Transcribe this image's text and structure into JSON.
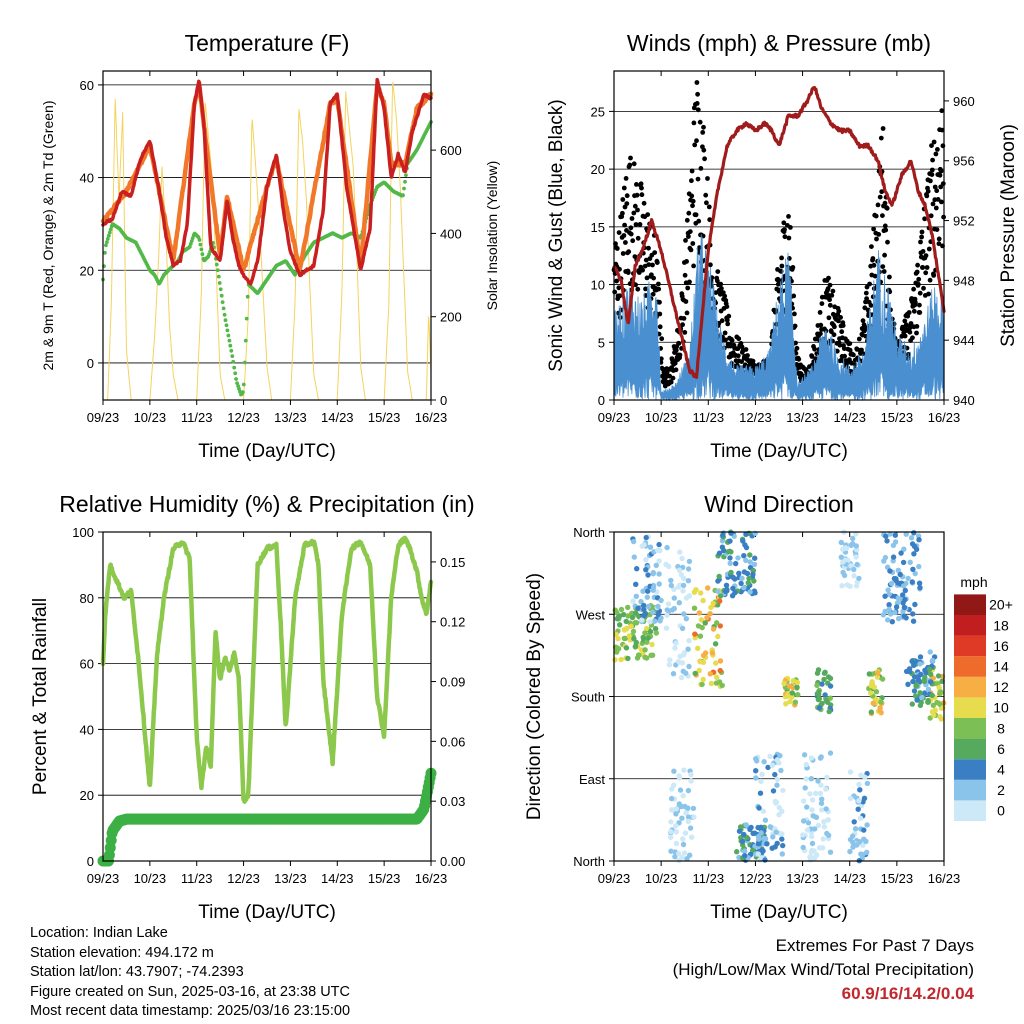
{
  "footer": {
    "location": "Location: Indian Lake",
    "elevation": "Station elevation: 494.172 m",
    "latlon": "Station lat/lon: 43.7907; -74.2393",
    "created": "Figure created on Sun, 2025-03-16, at 23:38 UTC",
    "latest": "Most recent data timestamp: 2025/03/16 23:15:00"
  },
  "extremes": {
    "title": "Extremes For Past 7 Days",
    "subtitle": "(High/Low/Max Wind/Total Precipitation)",
    "values": "60.9/16/14.2/0.04",
    "value_color": "#c1272d"
  },
  "chart_data": [
    {
      "type": "line",
      "title": "Temperature (F)",
      "xlabel": "Time (Day/UTC)",
      "ylabel": "2m & 9m T (Red, Orange) & 2m Td (Green)",
      "ylabel_right": "Solar Insolation (Yellow)",
      "xticks": [
        "09/23",
        "10/23",
        "11/23",
        "12/23",
        "13/23",
        "14/23",
        "15/23",
        "16/23"
      ],
      "x_unit": "days since 09/23",
      "xlim": [
        0,
        7
      ],
      "ylim": [
        -8,
        63
      ],
      "yticks": [
        0,
        20,
        40,
        60
      ],
      "ylim_right": [
        0,
        790
      ],
      "yticks_right": [
        0,
        200,
        400,
        600
      ],
      "grid": "horizontal",
      "series": [
        {
          "name": "2m T",
          "color": "#c91f1f",
          "style": "line",
          "x": [
            0,
            0.2,
            0.4,
            0.6,
            0.8,
            1.0,
            1.2,
            1.35,
            1.5,
            1.65,
            1.8,
            1.95,
            2.05,
            2.15,
            2.3,
            2.5,
            2.65,
            2.75,
            2.9,
            3.0,
            3.15,
            3.3,
            3.5,
            3.7,
            3.85,
            4.0,
            4.2,
            4.5,
            4.7,
            4.85,
            5.0,
            5.2,
            5.5,
            5.7,
            5.85,
            6.0,
            6.15,
            6.3,
            6.45,
            6.6,
            6.7,
            6.85,
            7.0
          ],
          "y": [
            30,
            31,
            37,
            36,
            44,
            48,
            37,
            27,
            21,
            22,
            30,
            56,
            61,
            52,
            25,
            22,
            35,
            28,
            21,
            19,
            17,
            22,
            38,
            45,
            33,
            24,
            19,
            21,
            33,
            56,
            58,
            38,
            20,
            29,
            61,
            55,
            40,
            45,
            41,
            50,
            53,
            58,
            57
          ]
        },
        {
          "name": "9m T",
          "color": "#f07828",
          "style": "line",
          "x": [
            0,
            0.5,
            1.0,
            1.5,
            1.95,
            2.05,
            2.5,
            2.65,
            3.0,
            3.5,
            3.7,
            4.2,
            4.85,
            5.0,
            5.5,
            5.85,
            6.0,
            6.15,
            6.45,
            6.7,
            7.0
          ],
          "y": [
            30.5,
            37,
            47,
            22,
            56,
            60,
            23,
            36,
            20,
            38,
            44,
            20,
            56,
            57,
            21,
            60,
            56,
            43,
            43,
            55,
            58
          ]
        },
        {
          "name": "2m Td",
          "color": "#52b848",
          "style": "dotted",
          "x": [
            0,
            0.05,
            0.2,
            0.35,
            0.5,
            0.7,
            0.9,
            1.0,
            1.1,
            1.2,
            1.3,
            1.5,
            1.6,
            1.7,
            1.85,
            1.95,
            2.05,
            2.15,
            2.25,
            2.35,
            2.45,
            2.6,
            2.75,
            2.85,
            2.95,
            3.0,
            3.1,
            3.3,
            3.5,
            3.7,
            3.9,
            4.1,
            4.3,
            4.5,
            4.7,
            4.9,
            5.1,
            5.3,
            5.5,
            5.7,
            5.85,
            6.0,
            6.2,
            6.4,
            6.5,
            6.7,
            6.85,
            7.0
          ],
          "y": [
            18,
            25,
            30,
            29,
            27,
            26,
            22,
            20,
            19,
            17,
            19,
            21,
            22,
            24,
            25,
            28,
            27,
            22,
            23,
            26,
            20,
            10,
            2,
            -4,
            -7,
            -6,
            17,
            15,
            18,
            21,
            22,
            19,
            23,
            26,
            27,
            28,
            27,
            28,
            27,
            34,
            38,
            39,
            37,
            36,
            43,
            46,
            49,
            52
          ]
        },
        {
          "name": "Solar Insolation",
          "color": "#f4d35e",
          "style": "thin",
          "axis": "right",
          "x": [
            0,
            0.1,
            0.18,
            0.26,
            0.34,
            0.42,
            0.5,
            0.6,
            0.9,
            1.0,
            1.1,
            1.18,
            1.26,
            1.34,
            1.42,
            1.5,
            1.6,
            1.9,
            2.0,
            2.1,
            2.18,
            2.26,
            2.34,
            2.42,
            2.5,
            2.6,
            2.9,
            3.0,
            3.1,
            3.18,
            3.26,
            3.34,
            3.42,
            3.5,
            3.6,
            3.9,
            4.0,
            4.1,
            4.18,
            4.26,
            4.34,
            4.42,
            4.5,
            4.6,
            4.9,
            5.0,
            5.1,
            5.18,
            5.26,
            5.34,
            5.42,
            5.5,
            5.6,
            5.9,
            6.0,
            6.1,
            6.18,
            6.26,
            6.34,
            6.42,
            6.5,
            6.6,
            6.9,
            6.95,
            7.0
          ],
          "y": [
            0,
            0,
            240,
            730,
            480,
            690,
            120,
            0,
            0,
            0,
            150,
            320,
            560,
            400,
            180,
            60,
            0,
            0,
            0,
            260,
            720,
            620,
            520,
            300,
            60,
            0,
            0,
            0,
            200,
            680,
            560,
            420,
            250,
            80,
            0,
            0,
            0,
            240,
            700,
            620,
            480,
            260,
            60,
            0,
            0,
            0,
            260,
            740,
            650,
            560,
            340,
            80,
            0,
            0,
            0,
            230,
            770,
            680,
            520,
            300,
            70,
            0,
            0,
            210,
            60
          ]
        }
      ]
    },
    {
      "type": "line",
      "title": "Winds (mph) & Pressure (mb)",
      "xlabel": "Time (Day/UTC)",
      "ylabel": "Sonic Wind & Gust (Blue, Black)",
      "ylabel_right": "Station Pressure (Maroon)",
      "xticks": [
        "09/23",
        "10/23",
        "11/23",
        "12/23",
        "13/23",
        "14/23",
        "15/23",
        "16/23"
      ],
      "x_unit": "days since 09/23",
      "xlim": [
        0,
        7
      ],
      "ylim": [
        0,
        28.5
      ],
      "yticks": [
        0,
        5,
        10,
        15,
        20,
        25
      ],
      "ylim_right": [
        940,
        962
      ],
      "yticks_right": [
        940,
        944,
        948,
        952,
        956,
        960
      ],
      "grid": "horizontal",
      "series": [
        {
          "name": "Sonic Wind",
          "color": "#4a90d0",
          "style": "band",
          "x": [
            0,
            0.3,
            0.6,
            0.9,
            1.0,
            1.3,
            1.6,
            1.8,
            2.0,
            2.2,
            2.4,
            2.6,
            3.0,
            3.3,
            3.5,
            3.7,
            3.9,
            4.2,
            4.5,
            4.7,
            5.0,
            5.3,
            5.6,
            5.8,
            6.0,
            6.3,
            6.6,
            6.8,
            7.0
          ],
          "y": [
            5,
            7,
            6,
            8,
            0.5,
            1,
            3,
            10,
            9,
            5,
            3,
            2,
            2,
            3,
            7,
            9,
            1,
            2,
            5,
            3,
            2,
            3,
            9,
            7,
            4,
            3,
            5,
            7,
            6
          ]
        },
        {
          "name": "Gust",
          "color": "#000000",
          "style": "scatter",
          "x": [
            0.1,
            0.3,
            0.5,
            0.7,
            0.9,
            1.05,
            1.2,
            1.4,
            1.6,
            1.75,
            1.9,
            2.1,
            2.3,
            2.5,
            2.7,
            2.9,
            3.1,
            3.3,
            3.55,
            3.7,
            3.9,
            4.1,
            4.3,
            4.5,
            4.7,
            4.9,
            5.1,
            5.3,
            5.5,
            5.7,
            5.9,
            6.1,
            6.3,
            6.5,
            6.7,
            6.9
          ],
          "y": [
            12,
            18,
            16,
            14,
            11,
            2,
            2.5,
            6,
            15,
            24,
            20,
            10,
            8,
            5,
            4,
            3,
            2.5,
            3,
            12,
            15,
            3,
            2,
            5,
            9,
            7,
            5,
            3,
            6,
            12,
            20,
            6,
            5,
            7,
            12,
            17,
            22
          ]
        },
        {
          "name": "Station Pressure",
          "color": "#a01c1c",
          "style": "line",
          "axis": "right",
          "x": [
            0,
            0.15,
            0.3,
            0.45,
            0.6,
            0.8,
            1.0,
            1.15,
            1.3,
            1.45,
            1.6,
            1.75,
            1.85,
            2.0,
            2.2,
            2.4,
            2.6,
            2.8,
            3.0,
            3.2,
            3.35,
            3.5,
            3.7,
            3.9,
            4.1,
            4.25,
            4.4,
            4.6,
            4.8,
            5.0,
            5.2,
            5.4,
            5.6,
            5.75,
            5.9,
            6.1,
            6.3,
            6.45,
            6.6,
            6.75,
            6.9,
            7.0
          ],
          "y": [
            949,
            948,
            945,
            949,
            950,
            952,
            950,
            948,
            946,
            944,
            942,
            941.5,
            945,
            950,
            954,
            957,
            958,
            958.5,
            958,
            958.5,
            958,
            957,
            959,
            959,
            960,
            961,
            959.5,
            958.5,
            958,
            958,
            957,
            957,
            956,
            954,
            953,
            955,
            956,
            954,
            953,
            951,
            948,
            946
          ]
        }
      ]
    },
    {
      "type": "line",
      "title": "Relative Humidity (%) & Precipitation (in)",
      "xlabel": "Time (Day/UTC)",
      "ylabel": "Percent & Total Rainfall",
      "xticks": [
        "09/23",
        "10/23",
        "11/23",
        "12/23",
        "13/23",
        "14/23",
        "15/23",
        "16/23"
      ],
      "x_unit": "days since 09/23",
      "xlim": [
        0,
        7
      ],
      "ylim": [
        0,
        100
      ],
      "yticks": [
        0,
        20,
        40,
        60,
        80,
        100
      ],
      "ylim_right": [
        0,
        0.165
      ],
      "yticks_right": [
        "0.00",
        "0.03",
        "0.06",
        "0.09",
        "0.12",
        "0.15"
      ],
      "grid": "horizontal",
      "series": [
        {
          "name": "Relative Humidity",
          "color": "#8cc84b",
          "style": "line",
          "x": [
            0,
            0.05,
            0.15,
            0.3,
            0.45,
            0.6,
            0.75,
            0.9,
            1.0,
            1.15,
            1.3,
            1.5,
            1.7,
            1.85,
            1.95,
            2.0,
            2.1,
            2.2,
            2.3,
            2.4,
            2.5,
            2.6,
            2.7,
            2.8,
            2.9,
            3.0,
            3.1,
            3.3,
            3.5,
            3.7,
            3.8,
            3.9,
            4.1,
            4.3,
            4.5,
            4.6,
            4.7,
            4.9,
            5.1,
            5.3,
            5.5,
            5.7,
            5.85,
            6.0,
            6.15,
            6.3,
            6.45,
            6.55,
            6.7,
            6.8,
            6.9,
            7.0
          ],
          "y": [
            60,
            75,
            90,
            85,
            80,
            82,
            62,
            38,
            22,
            62,
            80,
            95,
            97,
            92,
            55,
            38,
            22,
            35,
            28,
            70,
            55,
            62,
            58,
            63,
            55,
            18,
            20,
            90,
            95,
            96,
            70,
            40,
            80,
            96,
            97,
            90,
            55,
            30,
            75,
            95,
            97,
            90,
            50,
            38,
            80,
            96,
            98,
            95,
            88,
            80,
            75,
            85
          ]
        },
        {
          "name": "Total Rainfall",
          "color": "#3cb044",
          "style": "line",
          "axis": "right",
          "x": [
            0,
            0.12,
            0.2,
            0.35,
            0.5,
            1.0,
            2.0,
            3.0,
            4.0,
            5.0,
            6.0,
            6.7,
            6.85,
            6.95,
            7.0
          ],
          "y": [
            0,
            0,
            0.015,
            0.02,
            0.021,
            0.021,
            0.021,
            0.021,
            0.021,
            0.021,
            0.021,
            0.021,
            0.026,
            0.038,
            0.044
          ]
        }
      ]
    },
    {
      "type": "scatter",
      "title": "Wind Direction",
      "xlabel": "Time (Day/UTC)",
      "ylabel": "Direction (Colored By Speed)",
      "xticks": [
        "09/23",
        "10/23",
        "11/23",
        "12/23",
        "13/23",
        "14/23",
        "15/23",
        "16/23"
      ],
      "x_unit": "days since 09/23",
      "xlim": [
        0,
        7
      ],
      "ylim": [
        0,
        360
      ],
      "yticks": [
        "North",
        "East",
        "South",
        "West",
        "North"
      ],
      "ytick_values": [
        0,
        90,
        180,
        270,
        360
      ],
      "grid": "horizontal",
      "colorbar": {
        "title": "mph",
        "labels": [
          "0",
          "2",
          "4",
          "6",
          "8",
          "10",
          "12",
          "14",
          "16",
          "18",
          "20+"
        ],
        "colors": [
          "#cde9f8",
          "#8bc4eb",
          "#3a7fc4",
          "#56aa5e",
          "#7cbf55",
          "#e6dc4e",
          "#f6ae45",
          "#ef6b2b",
          "#de3a25",
          "#c11f1f",
          "#921818"
        ]
      },
      "clusters": [
        {
          "x0": 0.0,
          "x1": 0.9,
          "dir_lo": 220,
          "dir_hi": 280,
          "speed": "6-10"
        },
        {
          "x0": 0.4,
          "x1": 1.0,
          "dir_lo": 260,
          "dir_hi": 355,
          "speed": "0-4"
        },
        {
          "x0": 1.1,
          "x1": 1.6,
          "dir_lo": 200,
          "dir_hi": 345,
          "speed": "0-2"
        },
        {
          "x0": 1.7,
          "x1": 2.3,
          "dir_lo": 190,
          "dir_hi": 300,
          "speed": "6-14"
        },
        {
          "x0": 2.2,
          "x1": 3.0,
          "dir_lo": 290,
          "dir_hi": 360,
          "speed": "2-6"
        },
        {
          "x0": 1.2,
          "x1": 1.7,
          "dir_lo": 0,
          "dir_hi": 100,
          "speed": "0-2"
        },
        {
          "x0": 2.6,
          "x1": 3.2,
          "dir_lo": 0,
          "dir_hi": 40,
          "speed": "2-6"
        },
        {
          "x0": 3.0,
          "x1": 3.6,
          "dir_lo": 0,
          "dir_hi": 120,
          "speed": "0-4"
        },
        {
          "x0": 3.6,
          "x1": 3.9,
          "dir_lo": 170,
          "dir_hi": 200,
          "speed": "6-12"
        },
        {
          "x0": 4.3,
          "x1": 4.6,
          "dir_lo": 160,
          "dir_hi": 210,
          "speed": "4-8"
        },
        {
          "x0": 5.4,
          "x1": 5.7,
          "dir_lo": 160,
          "dir_hi": 210,
          "speed": "6-12"
        },
        {
          "x0": 6.7,
          "x1": 7.0,
          "dir_lo": 150,
          "dir_hi": 210,
          "speed": "6-12"
        },
        {
          "x0": 4.0,
          "x1": 4.6,
          "dir_lo": 0,
          "dir_hi": 120,
          "speed": "0-2"
        },
        {
          "x0": 5.0,
          "x1": 5.4,
          "dir_lo": 0,
          "dir_hi": 100,
          "speed": "0-4"
        },
        {
          "x0": 4.8,
          "x1": 5.2,
          "dir_lo": 300,
          "dir_hi": 360,
          "speed": "0-2"
        },
        {
          "x0": 5.7,
          "x1": 6.5,
          "dir_lo": 260,
          "dir_hi": 360,
          "speed": "2-4"
        },
        {
          "x0": 6.2,
          "x1": 6.8,
          "dir_lo": 170,
          "dir_hi": 230,
          "speed": "2-6"
        }
      ]
    }
  ]
}
